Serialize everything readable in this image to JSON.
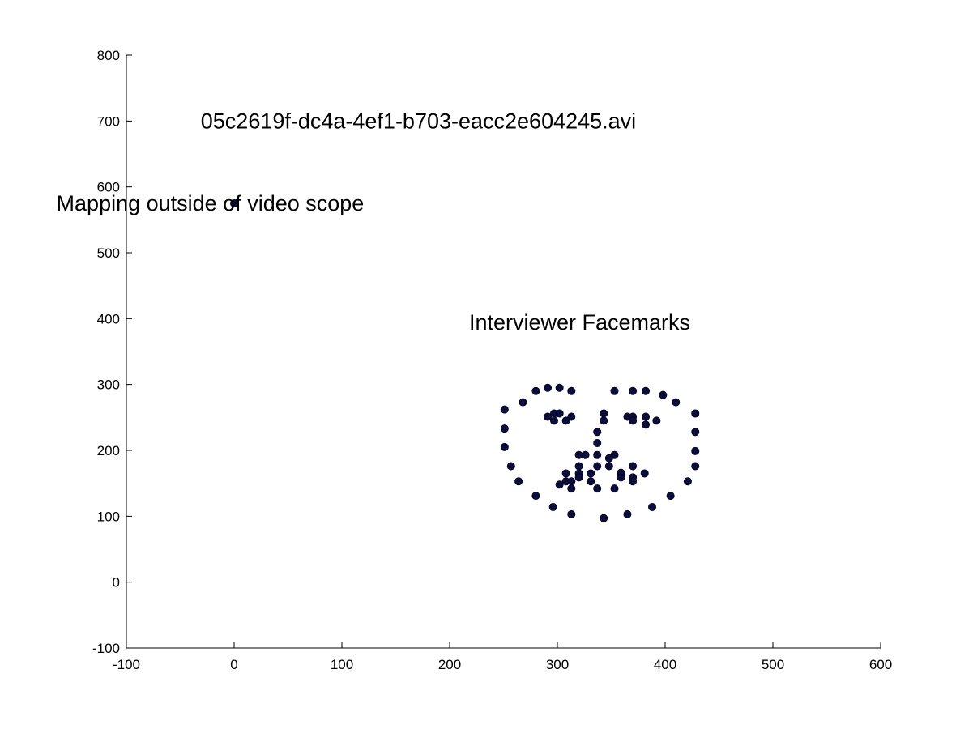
{
  "chart_data": {
    "type": "scatter",
    "title": "",
    "xlabel": "",
    "ylabel": "",
    "xlim": [
      -100,
      600
    ],
    "ylim": [
      -100,
      800
    ],
    "xticks": [
      -100,
      0,
      100,
      200,
      300,
      400,
      500,
      600
    ],
    "yticks": [
      -100,
      0,
      100,
      200,
      300,
      400,
      500,
      600,
      700,
      800
    ],
    "grid": false,
    "colors": {
      "marker": "#0d0d3a",
      "axis": "#000000"
    },
    "annotations": [
      {
        "id": "filename",
        "text": "05c2619f-dc4a-4ef1-b703-eacc2e604245.avi",
        "x": -31,
        "y": 700
      },
      {
        "id": "mapping",
        "text": "Mapping outside of video scope",
        "x": -165,
        "y": 575
      },
      {
        "id": "facemarks",
        "text": "Interviewer Facemarks",
        "x": 218,
        "y": 394
      }
    ],
    "series": [
      {
        "marker": "circle",
        "points": [
          [
            0,
            575
          ],
          [
            251,
            262
          ],
          [
            251,
            233
          ],
          [
            251,
            205
          ],
          [
            257,
            176
          ],
          [
            264,
            153
          ],
          [
            280,
            131
          ],
          [
            296,
            114
          ],
          [
            313,
            103
          ],
          [
            343,
            97
          ],
          [
            365,
            103
          ],
          [
            388,
            114
          ],
          [
            405,
            131
          ],
          [
            421,
            153
          ],
          [
            428,
            176
          ],
          [
            428,
            199
          ],
          [
            428,
            228
          ],
          [
            428,
            256
          ],
          [
            268,
            273
          ],
          [
            280,
            290
          ],
          [
            291,
            295
          ],
          [
            302,
            295
          ],
          [
            313,
            290
          ],
          [
            353,
            290
          ],
          [
            370,
            290
          ],
          [
            382,
            290
          ],
          [
            398,
            284
          ],
          [
            410,
            273
          ],
          [
            291,
            251
          ],
          [
            297,
            256
          ],
          [
            302,
            256
          ],
          [
            313,
            251
          ],
          [
            308,
            245
          ],
          [
            297,
            245
          ],
          [
            365,
            251
          ],
          [
            370,
            251
          ],
          [
            382,
            251
          ],
          [
            392,
            245
          ],
          [
            382,
            239
          ],
          [
            370,
            245
          ],
          [
            343,
            256
          ],
          [
            343,
            245
          ],
          [
            337,
            228
          ],
          [
            337,
            211
          ],
          [
            337,
            193
          ],
          [
            337,
            176
          ],
          [
            320,
            193
          ],
          [
            326,
            193
          ],
          [
            353,
            193
          ],
          [
            348,
            188
          ],
          [
            320,
            176
          ],
          [
            359,
            166
          ],
          [
            302,
            148
          ],
          [
            308,
            153
          ],
          [
            308,
            165
          ],
          [
            320,
            165
          ],
          [
            320,
            159
          ],
          [
            331,
            165
          ],
          [
            331,
            153
          ],
          [
            348,
            176
          ],
          [
            359,
            159
          ],
          [
            370,
            159
          ],
          [
            370,
            176
          ],
          [
            381,
            165
          ],
          [
            370,
            153
          ],
          [
            353,
            142
          ],
          [
            337,
            142
          ],
          [
            313,
            142
          ],
          [
            313,
            153
          ]
        ]
      }
    ]
  }
}
